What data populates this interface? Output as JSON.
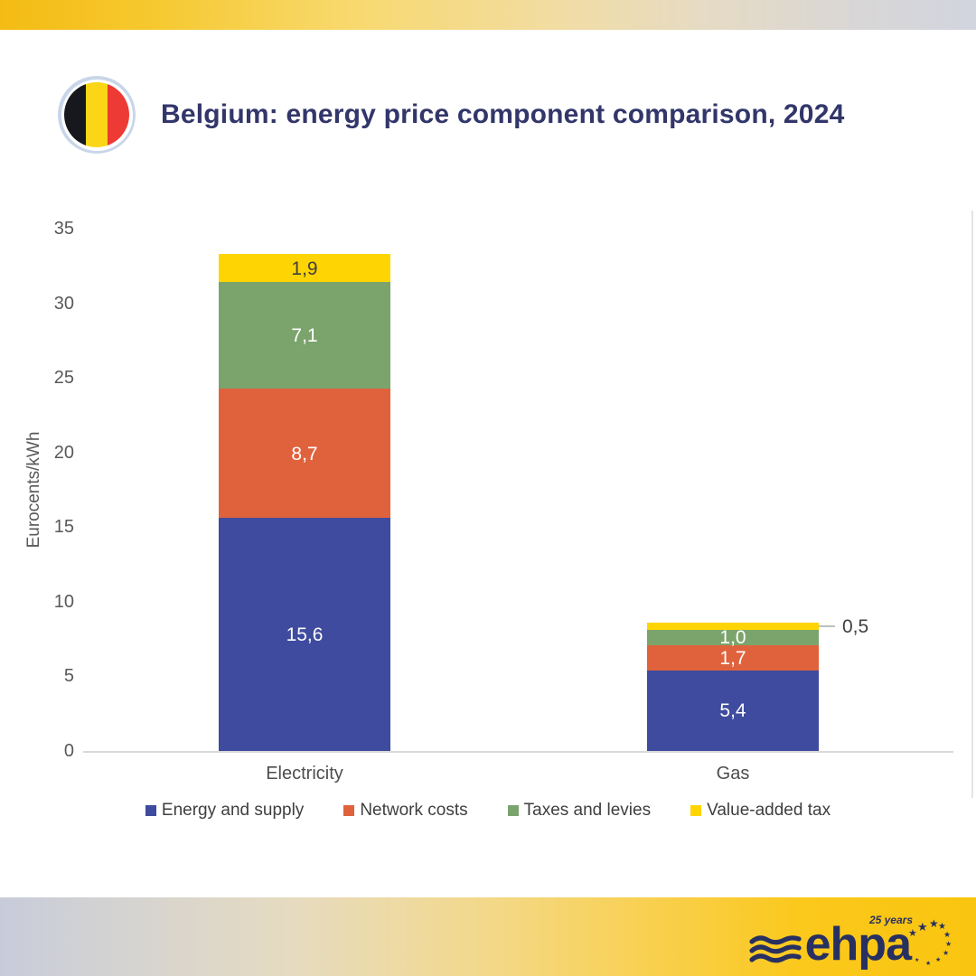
{
  "header": {
    "title": "Belgium: energy price component comparison, 2024",
    "title_color": "#32366A",
    "flag": {
      "icon": "belgium-flag-icon",
      "stripe_colors": [
        "#17181D",
        "#FAD616",
        "#EE3A34"
      ],
      "ring_outer": "#C9D6E9",
      "ring_inner": "#FFFFFF"
    }
  },
  "chart_data": {
    "type": "bar",
    "subtype": "stacked-vertical",
    "categories": [
      "Electricity",
      "Gas"
    ],
    "series": [
      {
        "name": "Energy and supply",
        "color": "#3E4B9E",
        "label_color": "#FFFFFF",
        "values": [
          15.6,
          5.4
        ],
        "labels": [
          "15,6",
          "5,4"
        ]
      },
      {
        "name": "Network costs",
        "color": "#E0623C",
        "label_color": "#FFFFFF",
        "values": [
          8.7,
          1.7
        ],
        "labels": [
          "8,7",
          "1,7"
        ]
      },
      {
        "name": "Taxes and levies",
        "color": "#7BA46C",
        "label_color": "#FFFFFF",
        "values": [
          7.1,
          1.0
        ],
        "labels": [
          "7,1",
          "1,0"
        ]
      },
      {
        "name": "Value-added tax",
        "color": "#FFD403",
        "label_color": "#3F3F3F",
        "values": [
          1.9,
          0.5
        ],
        "labels": [
          "1,9",
          "0,5"
        ],
        "label_outside": [
          false,
          true
        ]
      }
    ],
    "totals": [
      33.3,
      8.6
    ],
    "ylabel": "Eurocents/kWh",
    "yticks": [
      0,
      5,
      10,
      15,
      20,
      25,
      30,
      35
    ],
    "ylim": [
      0,
      35
    ],
    "grid": false,
    "legend_position": "bottom",
    "axis_color": "#D9D9D9",
    "tick_color": "#595959"
  },
  "footer": {
    "logo_text": "ehpa",
    "anniversary": "25 years",
    "logo_color": "#273060",
    "icons": [
      "waves-icon",
      "eu-stars-icon"
    ]
  },
  "decor": {
    "band_top_gradient": [
      "#F4BB13",
      "#D2D5DF"
    ],
    "band_bottom_gradient": [
      "#C8CCDA",
      "#FAC50F"
    ]
  }
}
